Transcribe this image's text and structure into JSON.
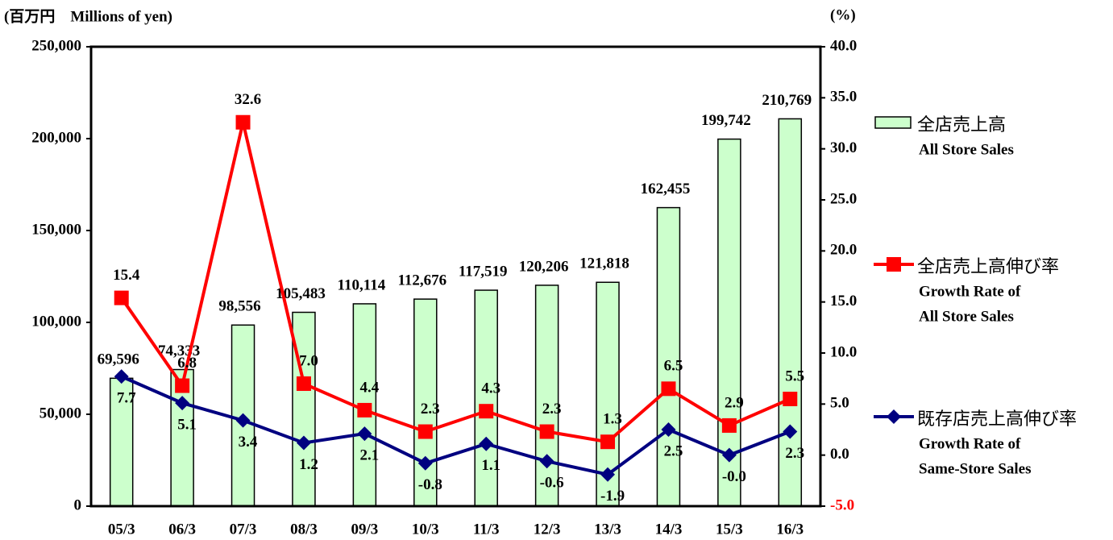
{
  "chart_data": {
    "type": "combo",
    "y_label": "(百万円　Millions of yen)",
    "y2_label": "(%)",
    "categories": [
      "05/3",
      "06/3",
      "07/3",
      "08/3",
      "09/3",
      "10/3",
      "11/3",
      "12/3",
      "13/3",
      "14/3",
      "15/3",
      "16/3"
    ],
    "ylim": [
      0,
      250000
    ],
    "yticks": [
      0,
      {
        "value": 50000,
        "label": "50,000"
      },
      {
        "value": 100000,
        "label": "100,000"
      },
      {
        "value": 150000,
        "label": "150,000"
      },
      {
        "value": 200000,
        "label": "200,000"
      },
      {
        "value": 250000,
        "label": "250,000"
      }
    ],
    "y2lim": [
      -5,
      40
    ],
    "y2ticks": [
      {
        "value": -5,
        "label": "-5.0"
      },
      {
        "value": 0,
        "label": "0.0"
      },
      {
        "value": 5,
        "label": "5.0"
      },
      {
        "value": 10,
        "label": "10.0"
      },
      {
        "value": 15,
        "label": "15.0"
      },
      {
        "value": 20,
        "label": "20.0"
      },
      {
        "value": 25,
        "label": "25.0"
      },
      {
        "value": 30,
        "label": "30.0"
      },
      {
        "value": 35,
        "label": "35.0"
      },
      {
        "value": 40,
        "label": "40.0"
      }
    ],
    "series": [
      {
        "name": "全店売上高",
        "name_en": [
          "All Store Sales"
        ],
        "type": "bar",
        "color": "#ccffcc",
        "axis": "y",
        "values": [
          69596,
          74333,
          98556,
          105483,
          110114,
          112676,
          117519,
          120206,
          121818,
          162455,
          199742,
          210769
        ],
        "value_labels": [
          "69,596",
          "74,333",
          "98,556",
          "105,483",
          "110,114",
          "112,676",
          "117,519",
          "120,206",
          "121,818",
          "162,455",
          "199,742",
          "210,769"
        ]
      },
      {
        "name": "全店売上高伸び率",
        "name_en": [
          "Growth Rate of",
          "All Store Sales"
        ],
        "type": "line",
        "color": "#ff0000",
        "axis": "y2",
        "values": [
          15.4,
          6.8,
          32.6,
          7.0,
          4.4,
          2.3,
          4.3,
          2.3,
          1.3,
          6.5,
          2.9,
          5.5
        ],
        "value_labels": [
          "15.4",
          "6.8",
          "32.6",
          "7.0",
          "4.4",
          "2.3",
          "4.3",
          "2.3",
          "1.3",
          "6.5",
          "2.9",
          "5.5"
        ]
      },
      {
        "name": "既存店売上高伸び率",
        "name_en": [
          "Growth Rate of",
          "Same-Store Sales"
        ],
        "type": "line",
        "color": "#000080",
        "axis": "y2",
        "values": [
          7.7,
          5.1,
          3.4,
          1.2,
          2.1,
          -0.8,
          1.1,
          -0.6,
          -1.9,
          2.5,
          -0.0,
          2.3
        ],
        "value_labels": [
          "7.7",
          "5.1",
          "3.4",
          "1.2",
          "2.1",
          "-0.8",
          "1.1",
          "-0.6",
          "-1.9",
          "2.5",
          "-0.0",
          "2.3"
        ]
      }
    ]
  }
}
